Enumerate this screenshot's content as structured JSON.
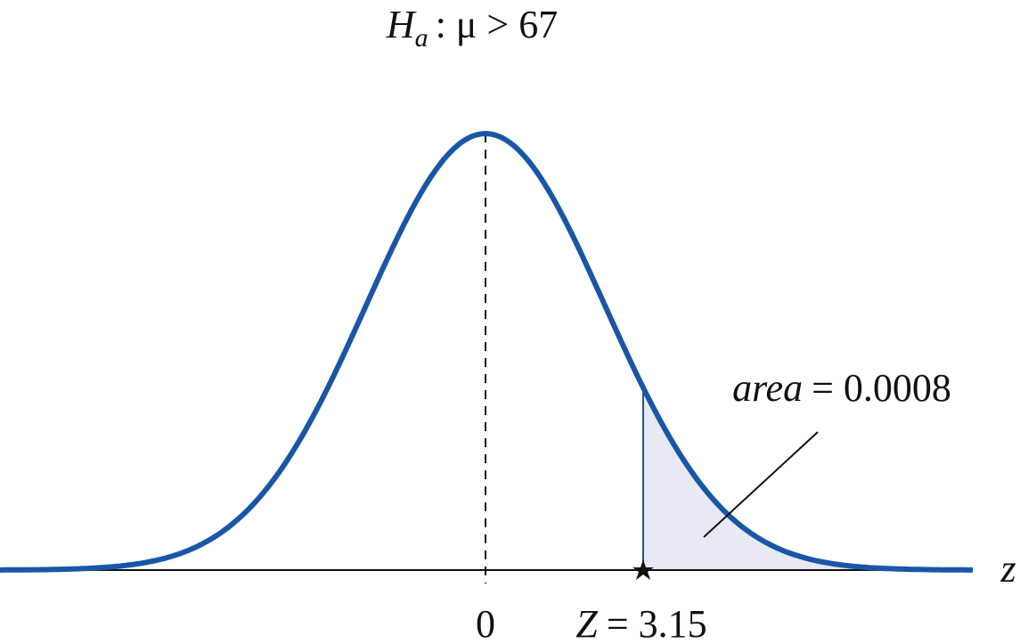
{
  "title": {
    "symbol": "H",
    "subscript": "a",
    "rest": ": μ > 67"
  },
  "annotation": {
    "word": "area",
    "rest": "= 0.0008"
  },
  "axis_label": "z",
  "center_label": "0",
  "statistic_label": {
    "symbol": "Z",
    "rest": "= 3.15"
  }
}
